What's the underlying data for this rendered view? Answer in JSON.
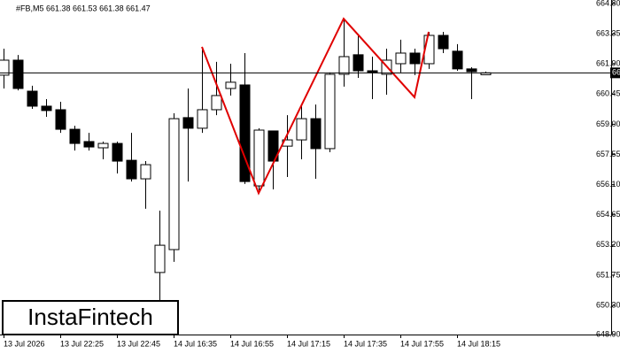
{
  "chart_data": {
    "type": "candlestick",
    "title": "#FB,M5  661.38 661.53 661.38 661.47",
    "categories": [
      "13 Jul 2026",
      null,
      null,
      null,
      "13 Jul 22:25",
      null,
      null,
      null,
      "13 Jul 22:45",
      null,
      null,
      null,
      "14 Jul 16:35",
      null,
      null,
      null,
      "14 Jul 16:55",
      null,
      null,
      null,
      "14 Jul 17:15",
      null,
      null,
      null,
      "14 Jul 17:35",
      null,
      null,
      null,
      "14 Jul 17:55",
      null,
      null,
      null,
      "14 Jul 18:15",
      null,
      null
    ],
    "open": [
      661.36,
      662.08,
      660.59,
      659.87,
      659.7,
      658.76,
      658.17,
      657.87,
      658.08,
      657.27,
      656.38,
      651.88,
      652.98,
      659.32,
      658.81,
      659.7,
      660.72,
      660.89,
      656.04,
      658.68,
      657.95,
      658.25,
      659.27,
      657.83,
      661.4,
      662.34,
      661.57,
      661.4,
      661.91,
      662.42,
      661.91,
      663.27,
      662.51,
      661.66,
      661.38
    ],
    "high": [
      662.63,
      662.33,
      660.85,
      660.21,
      660.08,
      658.93,
      658.59,
      658.17,
      658.17,
      658.59,
      657.23,
      654.85,
      659.53,
      660.72,
      662.63,
      662.0,
      661.91,
      662.42,
      658.81,
      658.68,
      659.44,
      659.95,
      659.95,
      661.49,
      664.03,
      663.27,
      662.25,
      662.63,
      663.06,
      662.63,
      663.44,
      663.44,
      662.85,
      661.74,
      661.53
    ],
    "low": [
      660.72,
      660.63,
      659.74,
      659.36,
      658.59,
      657.74,
      657.74,
      657.32,
      656.64,
      656.25,
      654.94,
      650.51,
      652.39,
      656.25,
      658.59,
      659.44,
      660.38,
      656.13,
      655.83,
      655.87,
      656.47,
      657.32,
      656.38,
      657.66,
      660.81,
      661.23,
      660.21,
      660.42,
      661.49,
      661.36,
      661.66,
      662.42,
      661.57,
      660.21,
      661.38
    ],
    "close": [
      662.08,
      660.72,
      659.87,
      659.66,
      658.76,
      658.08,
      657.91,
      658.08,
      657.23,
      656.38,
      657.06,
      653.19,
      659.27,
      658.81,
      659.7,
      660.38,
      661.02,
      656.25,
      658.72,
      657.23,
      658.25,
      659.27,
      657.83,
      661.4,
      662.25,
      661.57,
      661.49,
      662.08,
      662.42,
      661.91,
      663.27,
      662.63,
      661.66,
      661.53,
      661.47
    ],
    "ylim": [
      648.9,
      664.8
    ],
    "yticks": [
      {
        "value": 664.8,
        "label": "664.80"
      },
      663.35,
      {
        "value": 661.9,
        "label": "661.90"
      },
      660.45,
      {
        "value": 659,
        "label": "659.00"
      },
      657.55,
      {
        "value": 656.1,
        "label": "656.10"
      },
      654.65,
      {
        "value": 653.2,
        "label": "653.20"
      },
      651.75,
      {
        "value": 650.3,
        "label": "650.30"
      },
      {
        "value": 648.9,
        "label": "648.90"
      }
    ],
    "last_price": 661.47,
    "pattern": {
      "color": "#e00000",
      "x": [
        14,
        18,
        24,
        29,
        30
      ],
      "values": [
        662.72,
        655.69,
        664.07,
        660.3,
        663.44
      ]
    },
    "logo": "InstaFintech"
  }
}
